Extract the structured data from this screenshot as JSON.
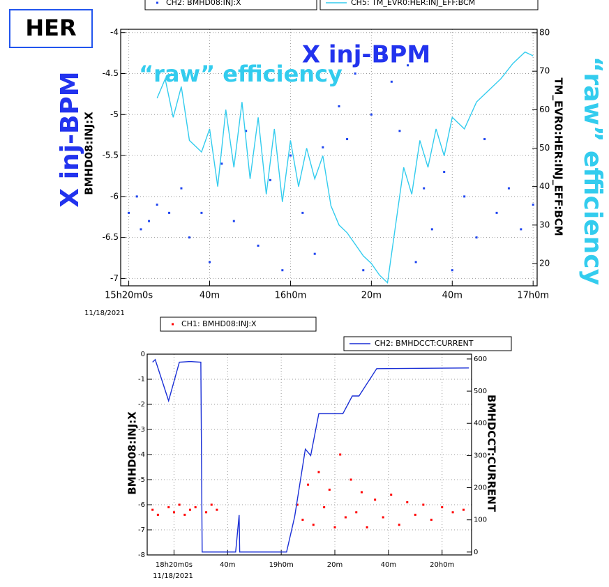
{
  "chart_data": [
    {
      "type": "combo",
      "annotations": [
        "HER",
        "X inj-BPM",
        "“raw” efficiency"
      ],
      "ylabel": "BMHD08:INJ:X",
      "y2label": "TM_EVR0:HER:INJ_EFF:BCM",
      "date": "11/18/2021",
      "xlim": [
        18,
        121
      ],
      "xticks": [
        {
          "value": 20,
          "label": "15h20m0s"
        },
        {
          "value": 40,
          "label": "40m"
        },
        {
          "value": 60,
          "label": "16h0m"
        },
        {
          "value": 80,
          "label": "20m"
        },
        {
          "value": 100,
          "label": "40m"
        },
        {
          "value": 120,
          "label": "17h0m"
        }
      ],
      "ylim": [
        -7.09,
        -3.96
      ],
      "yticks": [
        -4,
        -4.5,
        -5,
        -5.5,
        -6,
        -6.5,
        -7
      ],
      "y2lim": [
        14.2,
        80.9
      ],
      "y2ticks": [
        20,
        30,
        40,
        50,
        60,
        70,
        80
      ],
      "grid": true,
      "series": [
        {
          "name": "CH2: BMHD08:INJ:X",
          "type": "scatter",
          "color": "#1f45f0",
          "x": [
            20,
            22,
            23,
            25,
            27,
            30,
            33,
            35,
            38,
            40,
            43,
            46,
            49,
            52,
            55,
            58,
            60,
            63,
            66,
            68,
            72,
            74,
            76,
            78,
            80,
            83,
            85,
            87,
            89,
            91,
            93,
            95,
            98,
            100,
            103,
            106,
            108,
            111,
            114,
            117,
            120
          ],
          "values": [
            -6.2,
            -6.0,
            -6.4,
            -6.3,
            -6.1,
            -6.2,
            -5.9,
            -6.5,
            -6.2,
            -6.8,
            -5.6,
            -6.3,
            -5.2,
            -6.6,
            -5.8,
            -6.9,
            -5.5,
            -6.2,
            -6.7,
            -5.4,
            -4.9,
            -5.3,
            -4.5,
            -6.9,
            -5.0,
            -4.3,
            -4.6,
            -5.2,
            -4.4,
            -6.8,
            -5.9,
            -6.4,
            -5.7,
            -6.9,
            -6.0,
            -6.5,
            -5.3,
            -6.2,
            -5.9,
            -6.4,
            -6.1
          ]
        },
        {
          "name": "CH5: TM_EVR0:HER:INJ_EFF:BCM",
          "type": "line",
          "axis": "y2",
          "color": "#33ccee",
          "x": [
            27,
            29,
            31,
            33,
            35,
            38,
            40,
            42,
            44,
            46,
            48,
            50,
            52,
            54,
            56,
            58,
            60,
            62,
            64,
            66,
            68,
            70,
            72,
            74,
            76,
            78,
            80,
            82,
            84,
            86,
            88,
            90,
            92,
            94,
            96,
            98,
            100,
            103,
            106,
            109,
            112,
            115,
            118,
            120
          ],
          "values": [
            63,
            68,
            58,
            66,
            52,
            49,
            55,
            40,
            60,
            45,
            62,
            42,
            58,
            38,
            55,
            36,
            52,
            40,
            50,
            42,
            48,
            35,
            30,
            28,
            25,
            22,
            20,
            17,
            15,
            30,
            45,
            38,
            52,
            45,
            55,
            48,
            58,
            55,
            62,
            65,
            68,
            72,
            75,
            74
          ]
        }
      ]
    },
    {
      "type": "combo",
      "ylabel": "BMHD08:INJ:X",
      "y2label": "BMHDCCT:CURRENT",
      "date": "11/18/2021",
      "xlim": [
        10,
        131
      ],
      "xticks": [
        {
          "value": 20,
          "label": "18h20m0s"
        },
        {
          "value": 40,
          "label": "40m"
        },
        {
          "value": 60,
          "label": "19h0m"
        },
        {
          "value": 80,
          "label": "20m"
        },
        {
          "value": 100,
          "label": "40m"
        },
        {
          "value": 120,
          "label": "20h0m"
        }
      ],
      "ylim": [
        -8,
        0
      ],
      "yticks": [
        0,
        -1,
        -2,
        -3,
        -4,
        -5,
        -6,
        -7,
        -8
      ],
      "y2lim": [
        -9,
        615
      ],
      "y2ticks": [
        0,
        100,
        200,
        300,
        400,
        500,
        600
      ],
      "grid": true,
      "series": [
        {
          "name": "CH1: BMHD08:INJ:X",
          "type": "scatter",
          "color": "#ff0000",
          "x": [
            12,
            14,
            18,
            20,
            22,
            24,
            26,
            28,
            32,
            34,
            36,
            66,
            68,
            70,
            72,
            74,
            76,
            78,
            80,
            82,
            84,
            86,
            88,
            90,
            92,
            95,
            98,
            101,
            104,
            107,
            110,
            113,
            116,
            120,
            124,
            128
          ],
          "values": [
            -6.2,
            -6.4,
            -6.1,
            -6.3,
            -6.0,
            -6.4,
            -6.2,
            -6.1,
            -6.3,
            -6.0,
            -6.2,
            -6.0,
            -6.6,
            -5.2,
            -6.8,
            -4.7,
            -6.1,
            -5.4,
            -6.9,
            -4.0,
            -6.5,
            -5.0,
            -6.3,
            -5.5,
            -6.9,
            -5.8,
            -6.5,
            -5.6,
            -6.8,
            -5.9,
            -6.4,
            -6.0,
            -6.6,
            -6.1,
            -6.3,
            -6.2
          ]
        },
        {
          "name": "CH2: BMHDCCT:CURRENT",
          "type": "line",
          "axis": "y2",
          "color": "#1a2fd6",
          "x": [
            12,
            13,
            18,
            22,
            26,
            30,
            30.5,
            43,
            44.3,
            44.5,
            62,
            65,
            69,
            71,
            74,
            83,
            86.5,
            89,
            95.6,
            130
          ],
          "values": [
            590,
            598,
            470,
            590,
            592,
            590,
            0,
            0,
            115,
            0,
            0,
            110,
            320,
            300,
            430,
            430,
            485,
            485,
            570,
            572
          ]
        }
      ]
    }
  ]
}
